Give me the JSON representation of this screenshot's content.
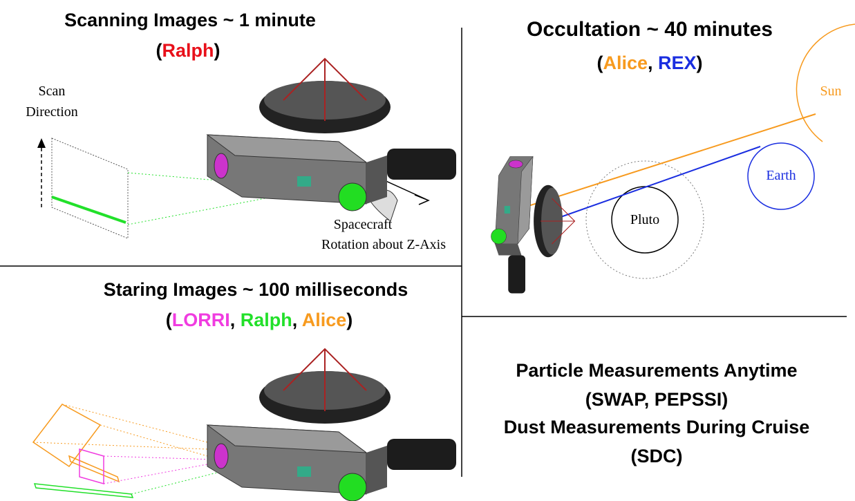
{
  "scanning": {
    "title": "Scanning Images ~ 1 minute",
    "instruments": [
      {
        "text": "("
      },
      {
        "text": "Ralph",
        "color": "#e8101a"
      },
      {
        "text": ")"
      }
    ],
    "scan_label": [
      "Scan",
      "Direction"
    ],
    "rotation_label": [
      "Spacecraft",
      "Rotation about Z-Axis"
    ]
  },
  "occultation": {
    "title": "Occultation ~ 40 minutes",
    "instruments": [
      {
        "text": "("
      },
      {
        "text": "Alice",
        "color": "#f79a1e"
      },
      {
        "text": ", "
      },
      {
        "text": "REX",
        "color": "#1a2ee0"
      },
      {
        "text": ")"
      }
    ],
    "sun": "Sun",
    "earth": "Earth",
    "pluto": "Pluto"
  },
  "staring": {
    "title": "Staring Images ~ 100 milliseconds",
    "instruments": [
      {
        "text": "("
      },
      {
        "text": "LORRI",
        "color": "#f03ce0"
      },
      {
        "text": ", "
      },
      {
        "text": "Ralph",
        "color": "#22e02a"
      },
      {
        "text": ", "
      },
      {
        "text": "Alice",
        "color": "#f79a1e"
      },
      {
        "text": ")"
      }
    ]
  },
  "measurements": {
    "lines": [
      "Particle Measurements Anytime",
      "(SWAP, PEPSSI)",
      "Dust Measurements During Cruise",
      "(SDC)"
    ]
  }
}
